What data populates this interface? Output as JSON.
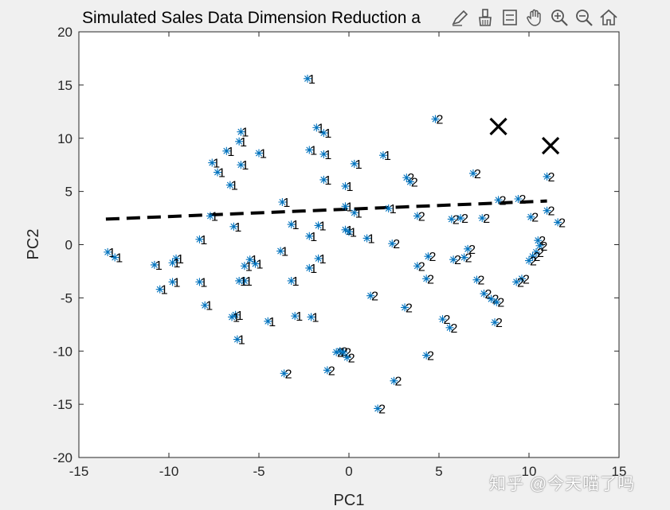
{
  "chart_data": {
    "type": "scatter",
    "title": "Simulated Sales Data Dimension Reduction a",
    "xlabel": "PC1",
    "ylabel": "PC2",
    "xlim": [
      -15,
      15
    ],
    "ylim": [
      -20,
      20
    ],
    "xticks": [
      "-15",
      "-10",
      "-5",
      "0",
      "5",
      "10",
      "15"
    ],
    "yticks": [
      "-20",
      "-15",
      "-10",
      "-5",
      "0",
      "5",
      "10",
      "15",
      "20"
    ],
    "grid": false,
    "marker_color": "#0072bd",
    "label_color": "#000000",
    "series": [
      {
        "label": "1",
        "points": [
          [
            -2.3,
            15.6
          ],
          [
            -1.8,
            11.0
          ],
          [
            -1.4,
            10.5
          ],
          [
            -6.0,
            10.6
          ],
          [
            -6.1,
            9.7
          ],
          [
            -6.8,
            8.8
          ],
          [
            -5.0,
            8.6
          ],
          [
            -2.2,
            8.9
          ],
          [
            -1.4,
            8.5
          ],
          [
            1.9,
            8.4
          ],
          [
            -7.6,
            7.7
          ],
          [
            -6.0,
            7.5
          ],
          [
            -7.3,
            6.8
          ],
          [
            0.3,
            7.6
          ],
          [
            -1.4,
            6.1
          ],
          [
            -6.6,
            5.6
          ],
          [
            -0.2,
            5.5
          ],
          [
            -3.7,
            4.0
          ],
          [
            -0.2,
            3.6
          ],
          [
            0.3,
            3.0
          ],
          [
            2.2,
            3.4
          ],
          [
            -7.7,
            2.7
          ],
          [
            -3.2,
            1.9
          ],
          [
            -6.4,
            1.7
          ],
          [
            -1.7,
            1.8
          ],
          [
            -0.2,
            1.4
          ],
          [
            0.0,
            1.2
          ],
          [
            -2.2,
            0.8
          ],
          [
            -8.3,
            0.5
          ],
          [
            1.0,
            0.6
          ],
          [
            -13.4,
            -0.7
          ],
          [
            -13.0,
            -1.2
          ],
          [
            -9.6,
            -1.3
          ],
          [
            -9.8,
            -1.7
          ],
          [
            -10.8,
            -1.9
          ],
          [
            -5.5,
            -1.4
          ],
          [
            -5.2,
            -1.8
          ],
          [
            -5.8,
            -2.0
          ],
          [
            -3.8,
            -0.6
          ],
          [
            -1.7,
            -1.3
          ],
          [
            -2.2,
            -2.2
          ],
          [
            -5.8,
            -3.4
          ],
          [
            -6.1,
            -3.4
          ],
          [
            -8.3,
            -3.5
          ],
          [
            -9.8,
            -3.5
          ],
          [
            -10.5,
            -4.2
          ],
          [
            -3.2,
            -3.4
          ],
          [
            -8.0,
            -5.7
          ],
          [
            -6.3,
            -6.6
          ],
          [
            -6.5,
            -6.8
          ],
          [
            -3.0,
            -6.7
          ],
          [
            -2.1,
            -6.8
          ],
          [
            -4.5,
            -7.2
          ],
          [
            -6.2,
            -8.9
          ]
        ]
      },
      {
        "label": "2",
        "points": [
          [
            4.8,
            11.8
          ],
          [
            3.2,
            6.3
          ],
          [
            3.4,
            5.9
          ],
          [
            6.9,
            6.7
          ],
          [
            11.0,
            6.4
          ],
          [
            8.3,
            4.2
          ],
          [
            9.4,
            4.3
          ],
          [
            11.0,
            3.2
          ],
          [
            11.6,
            2.1
          ],
          [
            10.1,
            2.6
          ],
          [
            3.8,
            2.7
          ],
          [
            5.7,
            2.4
          ],
          [
            6.2,
            2.5
          ],
          [
            7.4,
            2.5
          ],
          [
            2.4,
            0.1
          ],
          [
            10.5,
            0.4
          ],
          [
            10.6,
            -0.1
          ],
          [
            10.4,
            -0.7
          ],
          [
            10.2,
            -1.1
          ],
          [
            10.0,
            -1.5
          ],
          [
            6.6,
            -0.4
          ],
          [
            6.4,
            -1.2
          ],
          [
            5.8,
            -1.4
          ],
          [
            4.4,
            -1.1
          ],
          [
            3.8,
            -2.0
          ],
          [
            4.3,
            -3.2
          ],
          [
            7.1,
            -3.3
          ],
          [
            9.6,
            -3.2
          ],
          [
            9.3,
            -3.5
          ],
          [
            7.5,
            -4.6
          ],
          [
            7.9,
            -5.1
          ],
          [
            8.2,
            -5.4
          ],
          [
            1.2,
            -4.8
          ],
          [
            3.1,
            -5.9
          ],
          [
            5.2,
            -7.0
          ],
          [
            5.6,
            -7.8
          ],
          [
            8.1,
            -7.3
          ],
          [
            -0.7,
            -10.1
          ],
          [
            -0.5,
            -10.0
          ],
          [
            -0.3,
            -10.1
          ],
          [
            -0.1,
            -10.6
          ],
          [
            4.3,
            -10.4
          ],
          [
            -1.2,
            -11.8
          ],
          [
            -3.6,
            -12.1
          ],
          [
            2.5,
            -12.8
          ],
          [
            1.6,
            -15.4
          ]
        ]
      }
    ],
    "centroids": [
      [
        8.3,
        11.1
      ],
      [
        11.2,
        9.3
      ]
    ],
    "boundary_line": [
      [
        -13.5,
        2.4
      ],
      [
        11.0,
        4.1
      ]
    ]
  },
  "toolbar": {
    "tools": [
      {
        "name": "edit-plot-icon"
      },
      {
        "name": "brush-icon"
      },
      {
        "name": "data-tips-icon"
      },
      {
        "name": "pan-hand-icon"
      },
      {
        "name": "zoom-in-icon"
      },
      {
        "name": "zoom-out-icon"
      },
      {
        "name": "home-icon"
      }
    ]
  },
  "watermark": "知乎 @今天喵了吗"
}
